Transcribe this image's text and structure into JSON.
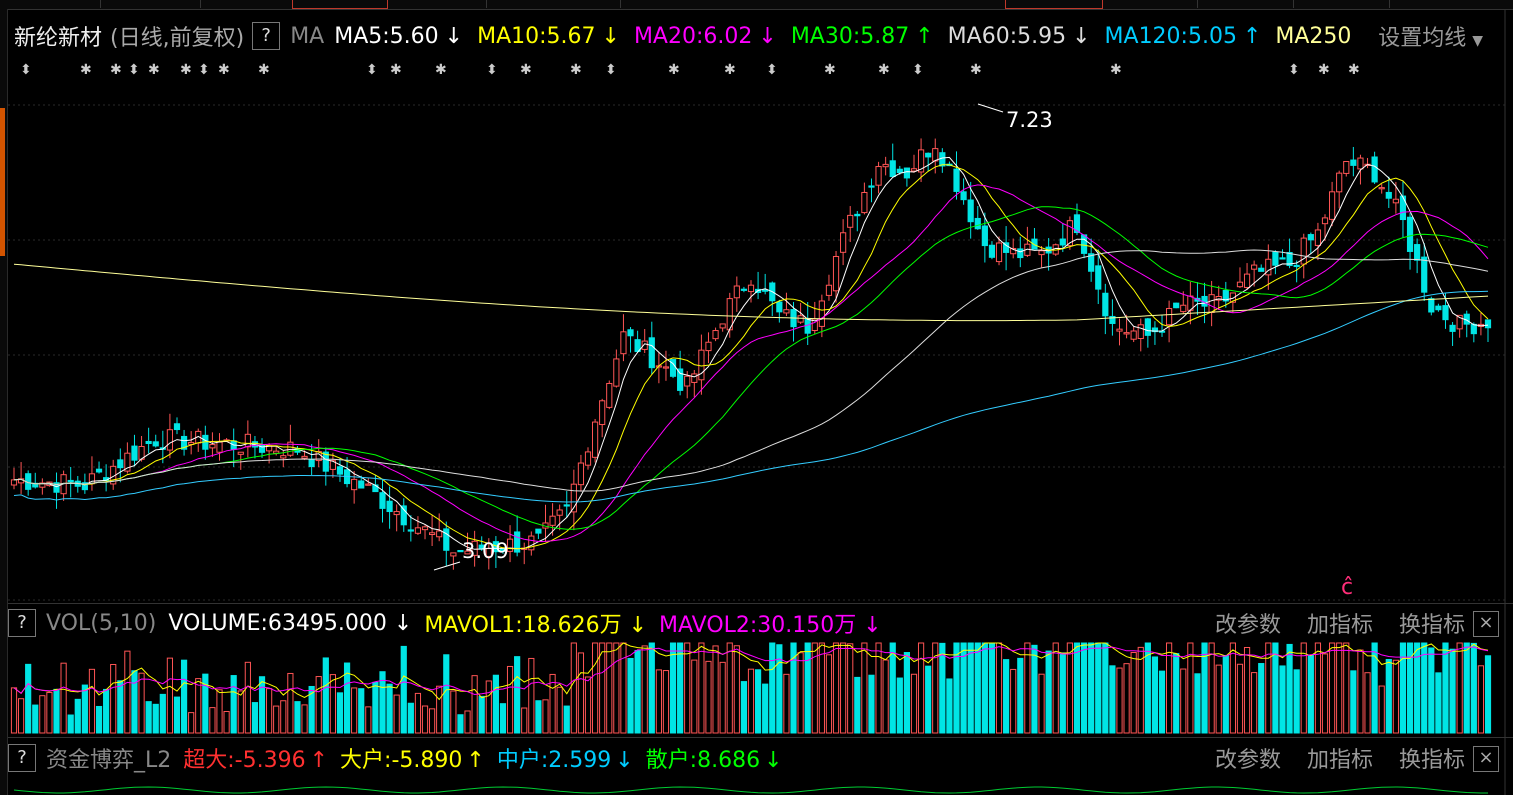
{
  "stock": {
    "name": "新纶新材",
    "mode": "(日线,前复权)",
    "help": "?",
    "ma_label": "MA",
    "setting": "设置均线"
  },
  "ma_legend": [
    {
      "label": "MA5:5.60",
      "arrow": "↓",
      "color": "#ffffff"
    },
    {
      "label": "MA10:5.67",
      "arrow": "↓",
      "color": "#ffff00"
    },
    {
      "label": "MA20:6.02",
      "arrow": "↓",
      "color": "#ff00ff"
    },
    {
      "label": "MA30:5.87",
      "arrow": "↑",
      "color": "#00ff00"
    },
    {
      "label": "MA60:5.95",
      "arrow": "↓",
      "color": "#dddddd"
    },
    {
      "label": "MA120:5.05",
      "arrow": "↑",
      "color": "#00ccff"
    },
    {
      "label": "MA250",
      "arrow": "",
      "color": "#ffff99"
    }
  ],
  "annotations": {
    "high": "7.23",
    "low": "3.09",
    "marker": "ĉ"
  },
  "vol_panel": {
    "help": "?",
    "name": "VOL(5,10)",
    "volume": "VOLUME:63495.000",
    "volume_arrow": "↓",
    "mavol1": "MAVOL1:18.626万",
    "mavol1_arrow": "↓",
    "mavol2": "MAVOL2:30.150万",
    "mavol2_arrow": "↓",
    "buttons": [
      "改参数",
      "加指标",
      "换指标"
    ],
    "close": "×"
  },
  "flow_panel": {
    "help": "?",
    "name": "资金博弈_L2",
    "items": [
      {
        "label": "超大:-5.396",
        "arrow": "↑",
        "color": "#ff3030"
      },
      {
        "label": "大户:-5.890",
        "arrow": "↑",
        "color": "#ffff00"
      },
      {
        "label": "中户:2.599",
        "arrow": "↓",
        "color": "#00ccff"
      },
      {
        "label": "散户:8.686",
        "arrow": "↓",
        "color": "#00ff00"
      }
    ],
    "buttons": [
      "改参数",
      "加指标",
      "换指标"
    ],
    "close": "×"
  },
  "colors": {
    "up": "#ff5555",
    "down": "#00e5e5",
    "background": "#000000"
  },
  "chart_data": {
    "type": "candlestick",
    "price_range": [
      2.9,
      7.5
    ],
    "high_point": 7.23,
    "low_point": 3.09,
    "anchors": [
      [
        0,
        3.8
      ],
      [
        10,
        3.75
      ],
      [
        20,
        4.2
      ],
      [
        30,
        4.15
      ],
      [
        40,
        4.1
      ],
      [
        50,
        3.7
      ],
      [
        58,
        3.3
      ],
      [
        62,
        3.1
      ],
      [
        68,
        3.15
      ],
      [
        74,
        3.2
      ],
      [
        78,
        3.5
      ],
      [
        82,
        4.4
      ],
      [
        86,
        5.2
      ],
      [
        90,
        5.0
      ],
      [
        95,
        4.7
      ],
      [
        100,
        5.4
      ],
      [
        104,
        5.8
      ],
      [
        108,
        5.4
      ],
      [
        112,
        5.3
      ],
      [
        118,
        6.3
      ],
      [
        122,
        6.9
      ],
      [
        126,
        6.8
      ],
      [
        130,
        7.1
      ],
      [
        133,
        6.7
      ],
      [
        137,
        6.1
      ],
      [
        141,
        6.0
      ],
      [
        145,
        6.0
      ],
      [
        150,
        6.3
      ],
      [
        155,
        5.3
      ],
      [
        160,
        5.2
      ],
      [
        165,
        5.5
      ],
      [
        170,
        5.5
      ],
      [
        175,
        5.8
      ],
      [
        180,
        5.9
      ],
      [
        184,
        6.2
      ],
      [
        188,
        6.9
      ],
      [
        192,
        6.8
      ],
      [
        196,
        6.3
      ],
      [
        200,
        5.5
      ],
      [
        204,
        5.3
      ],
      [
        208,
        5.35
      ]
    ],
    "volume_range": [
      0,
      1.0
    ]
  }
}
